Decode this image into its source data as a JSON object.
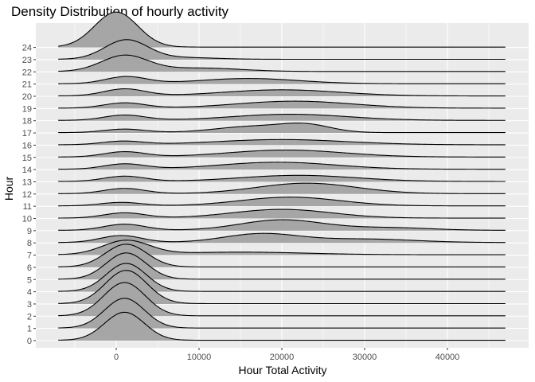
{
  "chart_data": {
    "type": "ridgeline",
    "title": "Density Distribution of hourly activity",
    "xlabel": "Hour Total Activity",
    "ylabel": "Hour",
    "xlim": [
      -10000,
      50000
    ],
    "x_ticks": [
      0,
      10000,
      20000,
      30000,
      40000
    ],
    "x_tick_labels": [
      "0",
      "10000",
      "20000",
      "30000",
      "40000"
    ],
    "categories": [
      "0",
      "1",
      "2",
      "3",
      "4",
      "5",
      "6",
      "7",
      "8",
      "9",
      "10",
      "11",
      "12",
      "13",
      "14",
      "15",
      "16",
      "17",
      "18",
      "19",
      "20",
      "21",
      "22",
      "23",
      "24"
    ],
    "grid": true,
    "fill_color": "#a6a6a6",
    "panel_color": "#ebebeb",
    "series": [
      {
        "hour": "0",
        "peaks": [
          {
            "mu": 1000,
            "sd": 2400,
            "h": 1.6
          }
        ]
      },
      {
        "hour": "1",
        "peaks": [
          {
            "mu": 1000,
            "sd": 2400,
            "h": 1.7
          }
        ]
      },
      {
        "hour": "2",
        "peaks": [
          {
            "mu": 1000,
            "sd": 2500,
            "h": 1.9
          }
        ]
      },
      {
        "hour": "3",
        "peaks": [
          {
            "mu": 1200,
            "sd": 2500,
            "h": 1.9
          }
        ]
      },
      {
        "hour": "4",
        "peaks": [
          {
            "mu": 1200,
            "sd": 2400,
            "h": 1.6
          }
        ]
      },
      {
        "hour": "5",
        "peaks": [
          {
            "mu": 1200,
            "sd": 2400,
            "h": 1.5
          }
        ]
      },
      {
        "hour": "6",
        "peaks": [
          {
            "mu": 1200,
            "sd": 2500,
            "h": 1.3
          }
        ]
      },
      {
        "hour": "7",
        "peaks": [
          {
            "mu": 1200,
            "sd": 2800,
            "h": 0.8
          },
          {
            "mu": 15000,
            "sd": 8000,
            "h": 0.15
          }
        ]
      },
      {
        "hour": "8",
        "peaks": [
          {
            "mu": 600,
            "sd": 2500,
            "h": 0.4
          },
          {
            "mu": 17500,
            "sd": 4500,
            "h": 0.5
          },
          {
            "mu": 30000,
            "sd": 6000,
            "h": 0.2
          }
        ]
      },
      {
        "hour": "9",
        "peaks": [
          {
            "mu": 1000,
            "sd": 2500,
            "h": 0.35
          },
          {
            "mu": 20000,
            "sd": 5000,
            "h": 0.6
          },
          {
            "mu": 33000,
            "sd": 5000,
            "h": 0.15
          }
        ]
      },
      {
        "hour": "10",
        "peaks": [
          {
            "mu": 1000,
            "sd": 2500,
            "h": 0.3
          },
          {
            "mu": 20000,
            "sd": 6000,
            "h": 0.5
          }
        ]
      },
      {
        "hour": "11",
        "peaks": [
          {
            "mu": 600,
            "sd": 2500,
            "h": 0.2
          },
          {
            "mu": 21000,
            "sd": 6000,
            "h": 0.5
          }
        ]
      },
      {
        "hour": "12",
        "peaks": [
          {
            "mu": 1000,
            "sd": 2500,
            "h": 0.3
          },
          {
            "mu": 23000,
            "sd": 6000,
            "h": 0.6
          }
        ]
      },
      {
        "hour": "13",
        "peaks": [
          {
            "mu": 1000,
            "sd": 2500,
            "h": 0.3
          },
          {
            "mu": 22000,
            "sd": 7000,
            "h": 0.35
          }
        ]
      },
      {
        "hour": "14",
        "peaks": [
          {
            "mu": 1000,
            "sd": 2500,
            "h": 0.3
          },
          {
            "mu": 19500,
            "sd": 7000,
            "h": 0.4
          }
        ]
      },
      {
        "hour": "15",
        "peaks": [
          {
            "mu": 1000,
            "sd": 2500,
            "h": 0.3
          },
          {
            "mu": 20500,
            "sd": 7000,
            "h": 0.4
          }
        ]
      },
      {
        "hour": "16",
        "peaks": [
          {
            "mu": 800,
            "sd": 2500,
            "h": 0.2
          },
          {
            "mu": 20000,
            "sd": 8000,
            "h": 0.3
          }
        ]
      },
      {
        "hour": "17",
        "peaks": [
          {
            "mu": 1000,
            "sd": 2500,
            "h": 0.2
          },
          {
            "mu": 16500,
            "sd": 4500,
            "h": 0.35
          },
          {
            "mu": 23000,
            "sd": 3000,
            "h": 0.4
          }
        ]
      },
      {
        "hour": "18",
        "peaks": [
          {
            "mu": 1000,
            "sd": 2500,
            "h": 0.3
          },
          {
            "mu": 21000,
            "sd": 7000,
            "h": 0.35
          }
        ]
      },
      {
        "hour": "19",
        "peaks": [
          {
            "mu": 1000,
            "sd": 2500,
            "h": 0.3
          },
          {
            "mu": 21500,
            "sd": 7000,
            "h": 0.4
          }
        ]
      },
      {
        "hour": "20",
        "peaks": [
          {
            "mu": 1000,
            "sd": 2500,
            "h": 0.4
          },
          {
            "mu": 20000,
            "sd": 7000,
            "h": 0.35
          }
        ]
      },
      {
        "hour": "21",
        "peaks": [
          {
            "mu": 1200,
            "sd": 2500,
            "h": 0.4
          },
          {
            "mu": 16000,
            "sd": 6000,
            "h": 0.3
          }
        ]
      },
      {
        "hour": "22",
        "peaks": [
          {
            "mu": 1000,
            "sd": 2800,
            "h": 0.9
          },
          {
            "mu": 10000,
            "sd": 5000,
            "h": 0.2
          }
        ]
      },
      {
        "hour": "23",
        "peaks": [
          {
            "mu": 1200,
            "sd": 2600,
            "h": 1.1
          },
          {
            "mu": 8000,
            "sd": 4000,
            "h": 0.1
          }
        ]
      },
      {
        "hour": "24",
        "peaks": [
          {
            "mu": 0,
            "sd": 2600,
            "h": 2.0
          }
        ]
      }
    ]
  }
}
